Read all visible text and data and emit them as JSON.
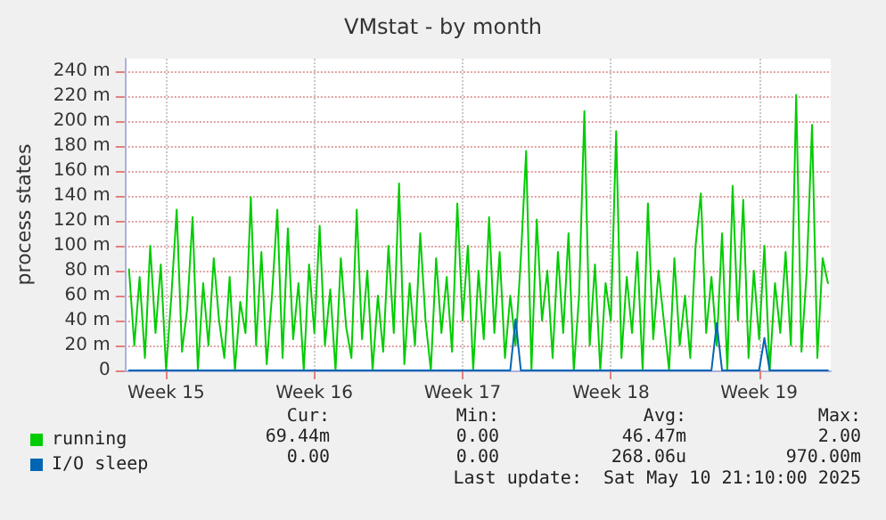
{
  "chart_data": {
    "type": "line",
    "title": "VMstat - by month",
    "ylabel": "process states",
    "x": [
      "2025-04-07T18:00",
      "2025-04-08T00:00",
      "2025-04-08T06:00",
      "2025-04-08T12:00",
      "2025-04-08T18:00",
      "2025-04-09T00:00",
      "2025-04-09T06:00",
      "2025-04-09T12:00",
      "2025-04-09T18:00",
      "2025-04-10T00:00",
      "2025-04-10T06:00",
      "2025-04-10T12:00",
      "2025-04-10T18:00",
      "2025-04-11T00:00",
      "2025-04-11T06:00",
      "2025-04-11T12:00",
      "2025-04-11T18:00",
      "2025-04-12T00:00",
      "2025-04-12T06:00",
      "2025-04-12T12:00",
      "2025-04-12T18:00",
      "2025-04-13T00:00",
      "2025-04-13T06:00",
      "2025-04-13T12:00",
      "2025-04-13T18:00",
      "2025-04-14T00:00",
      "2025-04-14T06:00",
      "2025-04-14T12:00",
      "2025-04-14T18:00",
      "2025-04-15T00:00",
      "2025-04-15T06:00",
      "2025-04-15T12:00",
      "2025-04-15T18:00",
      "2025-04-16T00:00",
      "2025-04-16T06:00",
      "2025-04-16T12:00",
      "2025-04-16T18:00",
      "2025-04-17T00:00",
      "2025-04-17T06:00",
      "2025-04-17T12:00",
      "2025-04-17T18:00",
      "2025-04-18T00:00",
      "2025-04-18T06:00",
      "2025-04-18T12:00",
      "2025-04-18T18:00",
      "2025-04-19T00:00",
      "2025-04-19T06:00",
      "2025-04-19T12:00",
      "2025-04-19T18:00",
      "2025-04-20T00:00",
      "2025-04-20T06:00",
      "2025-04-20T12:00",
      "2025-04-20T18:00",
      "2025-04-21T00:00",
      "2025-04-21T06:00",
      "2025-04-21T12:00",
      "2025-04-21T18:00",
      "2025-04-22T00:00",
      "2025-04-22T06:00",
      "2025-04-22T12:00",
      "2025-04-22T18:00",
      "2025-04-23T00:00",
      "2025-04-23T06:00",
      "2025-04-23T12:00",
      "2025-04-23T18:00",
      "2025-04-24T00:00",
      "2025-04-24T06:00",
      "2025-04-24T12:00",
      "2025-04-24T18:00",
      "2025-04-25T00:00",
      "2025-04-25T06:00",
      "2025-04-25T12:00",
      "2025-04-25T18:00",
      "2025-04-26T00:00",
      "2025-04-26T06:00",
      "2025-04-26T12:00",
      "2025-04-26T18:00",
      "2025-04-27T00:00",
      "2025-04-27T06:00",
      "2025-04-27T12:00",
      "2025-04-27T18:00",
      "2025-04-28T00:00",
      "2025-04-28T06:00",
      "2025-04-28T12:00",
      "2025-04-28T18:00",
      "2025-04-29T00:00",
      "2025-04-29T06:00",
      "2025-04-29T12:00",
      "2025-04-29T18:00",
      "2025-04-30T00:00",
      "2025-04-30T06:00",
      "2025-04-30T12:00",
      "2025-04-30T18:00",
      "2025-05-01T00:00",
      "2025-05-01T06:00",
      "2025-05-01T12:00",
      "2025-05-01T18:00",
      "2025-05-02T00:00",
      "2025-05-02T06:00",
      "2025-05-02T12:00",
      "2025-05-02T18:00",
      "2025-05-03T00:00",
      "2025-05-03T06:00",
      "2025-05-03T12:00",
      "2025-05-03T18:00",
      "2025-05-04T00:00",
      "2025-05-04T06:00",
      "2025-05-04T12:00",
      "2025-05-04T18:00",
      "2025-05-05T00:00",
      "2025-05-05T06:00",
      "2025-05-05T12:00",
      "2025-05-05T18:00",
      "2025-05-06T00:00",
      "2025-05-06T06:00",
      "2025-05-06T12:00",
      "2025-05-06T18:00",
      "2025-05-07T00:00",
      "2025-05-07T06:00",
      "2025-05-07T12:00",
      "2025-05-07T18:00",
      "2025-05-08T00:00",
      "2025-05-08T06:00",
      "2025-05-08T12:00",
      "2025-05-08T18:00",
      "2025-05-09T00:00",
      "2025-05-09T06:00",
      "2025-05-09T12:00",
      "2025-05-09T18:00",
      "2025-05-10T00:00",
      "2025-05-10T06:00",
      "2025-05-10T12:00",
      "2025-05-10T18:00"
    ],
    "series": [
      {
        "name": "running",
        "color": "#00cc00",
        "values": [
          81,
          20,
          75,
          10,
          100,
          30,
          85,
          0,
          60,
          129,
          15,
          50,
          123,
          0,
          70,
          20,
          90,
          40,
          10,
          75,
          0,
          55,
          30,
          139,
          20,
          95,
          5,
          60,
          129,
          10,
          114,
          25,
          70,
          0,
          85,
          30,
          116,
          20,
          65,
          0,
          90,
          35,
          10,
          129,
          25,
          80,
          0,
          60,
          15,
          100,
          30,
          150,
          5,
          70,
          20,
          110,
          40,
          0,
          90,
          30,
          75,
          15,
          134,
          40,
          100,
          0,
          80,
          25,
          123,
          30,
          95,
          10,
          60,
          20,
          90,
          176,
          0,
          121,
          40,
          80,
          10,
          95,
          30,
          110,
          0,
          60,
          208,
          20,
          85,
          0,
          70,
          40,
          192,
          10,
          75,
          30,
          95,
          0,
          134,
          25,
          80,
          40,
          0,
          90,
          20,
          60,
          10,
          100,
          142,
          30,
          75,
          20,
          110,
          0,
          148,
          40,
          137,
          10,
          80,
          25,
          100,
          0,
          70,
          30,
          95,
          20,
          221,
          15,
          80,
          197,
          10,
          90,
          70
        ]
      },
      {
        "name": "I/O sleep",
        "color": "#0066b3",
        "values": [
          0,
          0,
          0,
          0,
          0,
          0,
          0,
          0,
          0,
          0,
          0,
          0,
          0,
          0,
          0,
          0,
          0,
          0,
          0,
          0,
          0,
          0,
          0,
          0,
          0,
          0,
          0,
          0,
          0,
          0,
          0,
          0,
          0,
          0,
          0,
          0,
          0,
          0,
          0,
          0,
          0,
          0,
          0,
          0,
          0,
          0,
          0,
          0,
          0,
          0,
          0,
          0,
          0,
          0,
          0,
          0,
          0,
          0,
          0,
          0,
          0,
          0,
          0,
          0,
          0,
          0,
          0,
          0,
          0,
          0,
          0,
          0,
          0,
          41,
          0,
          0,
          0,
          0,
          0,
          0,
          0,
          0,
          0,
          0,
          0,
          0,
          0,
          0,
          0,
          0,
          0,
          0,
          0,
          0,
          0,
          0,
          0,
          0,
          0,
          0,
          0,
          0,
          0,
          0,
          0,
          0,
          0,
          0,
          0,
          0,
          0,
          38,
          0,
          0,
          0,
          0,
          0,
          0,
          0,
          0,
          26,
          0,
          0,
          0,
          0,
          0,
          0,
          0,
          0,
          0,
          0,
          0,
          0
        ]
      }
    ],
    "xlim": [
      "2025-04-07T13:00",
      "2025-05-10T21:10"
    ],
    "xticks": [
      {
        "value": "2025-04-09T12:00",
        "label": "Week 15"
      },
      {
        "value": "2025-04-16T12:00",
        "label": "Week 16"
      },
      {
        "value": "2025-04-23T12:00",
        "label": "Week 17"
      },
      {
        "value": "2025-04-30T12:00",
        "label": "Week 18"
      },
      {
        "value": "2025-05-07T12:00",
        "label": "Week 19"
      }
    ],
    "ylim": [
      0,
      250
    ],
    "yticks": [
      0,
      {
        "value": 20,
        "label": "20 m"
      },
      {
        "value": 40,
        "label": "40 m"
      },
      {
        "value": 60,
        "label": "60 m"
      },
      {
        "value": 80,
        "label": "80 m"
      },
      {
        "value": 100,
        "label": "100 m"
      },
      {
        "value": 120,
        "label": "120 m"
      },
      {
        "value": 140,
        "label": "140 m"
      },
      {
        "value": 160,
        "label": "160 m"
      },
      {
        "value": 180,
        "label": "180 m"
      },
      {
        "value": 200,
        "label": "200 m"
      },
      {
        "value": 220,
        "label": "220 m"
      },
      {
        "value": 240,
        "label": "240 m"
      }
    ],
    "grid": true,
    "legend": "bottom left",
    "marker": "none",
    "line_style": "solid",
    "annotations": [
      "Cur:",
      "Min:",
      "Avg:",
      "Max:",
      "69.44m",
      "0.00",
      "46.47m",
      "2.00",
      "0.00",
      "0.00",
      "268.06u",
      "970.00m",
      "Last update:  Sat May 10 21:10:00 2025"
    ]
  }
}
